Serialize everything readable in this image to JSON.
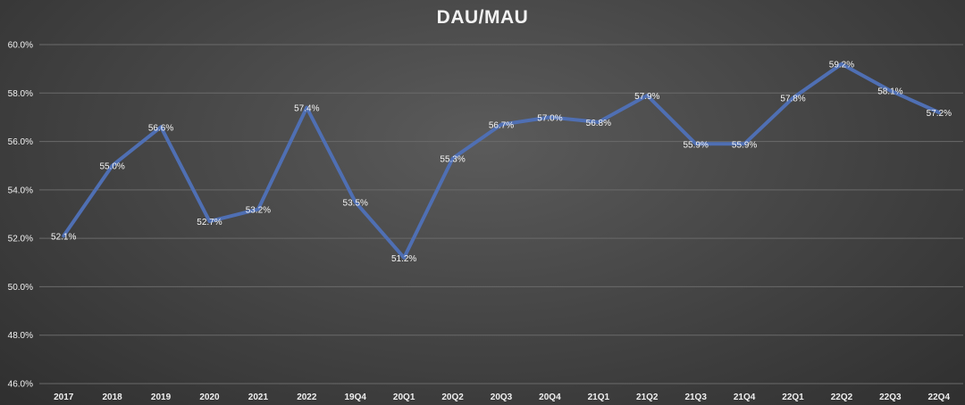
{
  "chart_data": {
    "type": "line",
    "title": "DAU/MAU",
    "xlabel": "",
    "ylabel": "",
    "categories": [
      "2017",
      "2018",
      "2019",
      "2020",
      "2021",
      "2022",
      "19Q4",
      "20Q1",
      "20Q2",
      "20Q3",
      "20Q4",
      "21Q1",
      "21Q2",
      "21Q3",
      "21Q4",
      "22Q1",
      "22Q2",
      "22Q3",
      "22Q4"
    ],
    "series": [
      {
        "values": [
          52.1,
          55.0,
          56.6,
          52.7,
          53.2,
          57.4,
          53.5,
          51.2,
          55.3,
          56.7,
          57.0,
          56.8,
          57.9,
          55.9,
          55.9,
          57.8,
          59.2,
          58.1,
          57.2
        ],
        "labels": [
          "52.1%",
          "55.0%",
          "56.6%",
          "52.7%",
          "53.2%",
          "57.4%",
          "53.5%",
          "51.2%",
          "55.3%",
          "56.7%",
          "57.0%",
          "56.8%",
          "57.9%",
          "55.9%",
          "55.9%",
          "57.8%",
          "59.2%",
          "58.1%",
          "57.2%"
        ]
      }
    ],
    "y_ticks": [
      46.0,
      48.0,
      50.0,
      52.0,
      54.0,
      56.0,
      58.0,
      60.0
    ],
    "y_tick_labels": [
      "46.0%",
      "48.0%",
      "50.0%",
      "52.0%",
      "54.0%",
      "56.0%",
      "58.0%",
      "60.0%"
    ],
    "ylim": [
      46.0,
      60.0
    ],
    "grid": true,
    "legend": "none",
    "colors": {
      "line": "#4f6fb3",
      "gridline": "#6a6a6a",
      "text": "#f0f0f0"
    }
  }
}
